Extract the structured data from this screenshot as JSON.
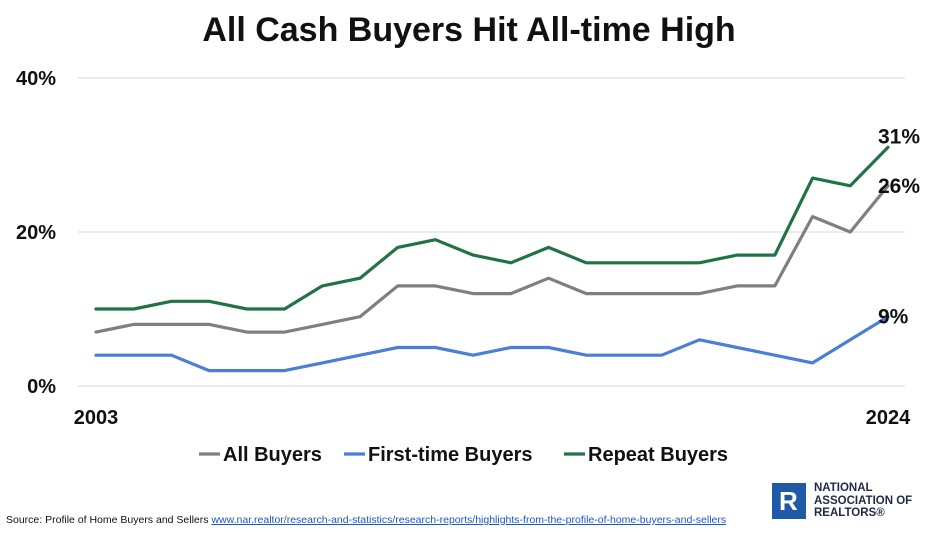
{
  "chart_data": {
    "type": "line",
    "title": "All Cash Buyers Hit All-time High",
    "x": [
      2003,
      2004,
      2005,
      2006,
      2007,
      2008,
      2009,
      2010,
      2011,
      2012,
      2013,
      2014,
      2015,
      2016,
      2017,
      2018,
      2019,
      2020,
      2021,
      2022,
      2023,
      2024
    ],
    "x_tick_labels": [
      "2003",
      "2024"
    ],
    "y_tick_labels": [
      "0%",
      "20%",
      "40%"
    ],
    "ylim": [
      0,
      40
    ],
    "grid": true,
    "legend_position": "bottom",
    "series": [
      {
        "name": "All Buyers",
        "color": "#7f7f7f",
        "values": [
          7,
          8,
          8,
          8,
          7,
          7,
          8,
          9,
          13,
          13,
          12,
          12,
          14,
          12,
          12,
          12,
          12,
          13,
          13,
          22,
          20,
          26
        ],
        "end_label": "26%"
      },
      {
        "name": "First-time Buyers",
        "color": "#4a7fd6",
        "values": [
          4,
          4,
          4,
          2,
          2,
          2,
          3,
          4,
          5,
          5,
          4,
          5,
          5,
          4,
          4,
          4,
          6,
          5,
          4,
          3,
          6,
          9
        ],
        "end_label": "9%"
      },
      {
        "name": "Repeat Buyers",
        "color": "#217346",
        "values": [
          10,
          10,
          11,
          11,
          10,
          10,
          13,
          14,
          18,
          19,
          17,
          16,
          18,
          16,
          16,
          16,
          16,
          17,
          17,
          27,
          26,
          31
        ],
        "end_label": "31%"
      }
    ]
  },
  "source": {
    "prefix": "Source: Profile of Home Buyers and Sellers ",
    "link_text": "www.nar.realtor/research-and-statistics/research-reports/highlights-from-the-profile-of-home-buyers-and-sellers"
  },
  "logo": {
    "mark": "R",
    "line1": "NATIONAL",
    "line2": "ASSOCIATION OF",
    "line3": "REALTORS®"
  }
}
